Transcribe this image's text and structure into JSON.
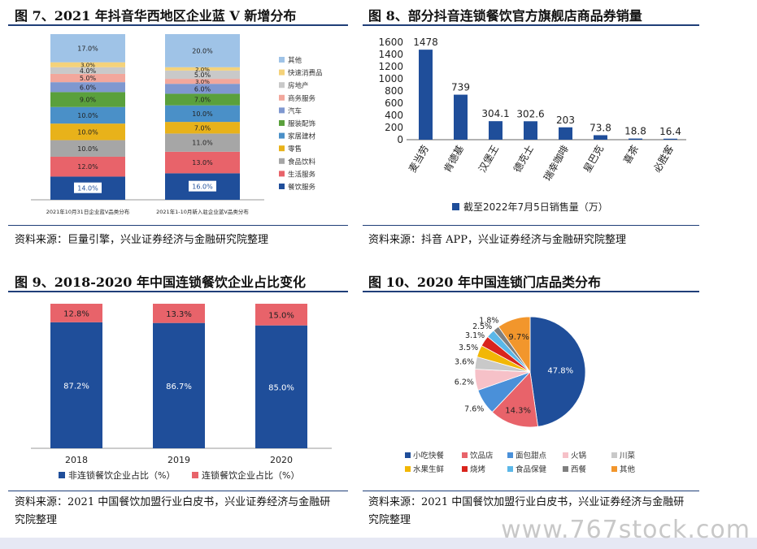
{
  "watermark": "www.767stock.com",
  "fig7": {
    "title": "图 7、2021 年抖音华西地区企业蓝 V 新增分布",
    "source": "资料来源：巨量引擎，兴业证券经济与金融研究院整理",
    "chart_data": {
      "type": "bar",
      "stacked": true,
      "categories": [
        "2021年10月31日企业蓝V品类分布",
        "2021年1-10月新入驻企业蓝V品类分布"
      ],
      "series": [
        {
          "name": "餐饮服务",
          "color": "#1f4e9a",
          "values": [
            14.0,
            16.0
          ]
        },
        {
          "name": "生活服务",
          "color": "#e8636a",
          "values": [
            12.0,
            13.0
          ]
        },
        {
          "name": "食品饮料",
          "color": "#a6a6a6",
          "values": [
            10.0,
            11.0
          ]
        },
        {
          "name": "零售",
          "color": "#e8b21a",
          "values": [
            10.0,
            7.0
          ]
        },
        {
          "name": "家居建材",
          "color": "#4a90c8",
          "values": [
            10.0,
            10.0
          ]
        },
        {
          "name": "服装配饰",
          "color": "#5aa03c",
          "values": [
            9.0,
            7.0
          ]
        },
        {
          "name": "汽车",
          "color": "#7f98d0",
          "values": [
            6.0,
            6.0
          ]
        },
        {
          "name": "商务服务",
          "color": "#f2a79c",
          "values": [
            5.0,
            3.0
          ]
        },
        {
          "name": "房地产",
          "color": "#c9c9c9",
          "values": [
            4.0,
            5.0
          ]
        },
        {
          "name": "快速消费品",
          "color": "#f4d27a",
          "values": [
            3.0,
            2.0
          ]
        },
        {
          "name": "其他",
          "color": "#9fc3e7",
          "values": [
            17.0,
            20.0
          ]
        }
      ]
    }
  },
  "fig8": {
    "title": "图 8、部分抖音连锁餐饮官方旗舰店商品券销量",
    "source": "资料来源：抖音 APP，兴业证券经济与金融研究院整理",
    "chart_data": {
      "type": "bar",
      "categories": [
        "麦当劳",
        "肯德基",
        "汉堡王",
        "德克士",
        "瑞幸咖啡",
        "星巴克",
        "喜茶",
        "必胜客"
      ],
      "series": [
        {
          "name": "截至2022年7月5日销售量（万）",
          "color": "#1f4e9a",
          "values": [
            1478,
            739,
            304.1,
            302.6,
            203,
            73.8,
            18.8,
            16.4
          ]
        }
      ],
      "value_labels": [
        "1478",
        "739",
        "304.1",
        "302.6",
        "203",
        "73.8",
        "18.8",
        "16.4"
      ],
      "ylim": [
        0,
        1600
      ],
      "yticks": [
        0,
        200,
        400,
        600,
        800,
        1000,
        1200,
        1400,
        1600
      ],
      "legend": "bottom"
    }
  },
  "fig9": {
    "title": "图 9、2018-2020 年中国连锁餐饮企业占比变化",
    "source": "资料来源：2021 中国餐饮加盟行业白皮书，兴业证券经济与金融研究院整理",
    "chart_data": {
      "type": "bar",
      "stacked": true,
      "categories": [
        "2018",
        "2019",
        "2020"
      ],
      "series": [
        {
          "name": "非连锁餐饮企业占比（%）",
          "color": "#1f4e9a",
          "values": [
            87.2,
            86.7,
            85.0
          ],
          "labels": [
            "87.2%",
            "86.7%",
            "85.0%"
          ]
        },
        {
          "name": "连锁餐饮企业占比（%）",
          "color": "#e8636a",
          "values": [
            12.8,
            13.3,
            15.0
          ],
          "labels": [
            "12.8%",
            "13.3%",
            "15.0%"
          ]
        }
      ],
      "legend": "bottom"
    }
  },
  "fig10": {
    "title": "图 10、2020 年中国连锁门店品类分布",
    "source": "资料来源：2021 中国餐饮加盟行业白皮书，兴业证券经济与金融研究院整理",
    "chart_data": {
      "type": "pie",
      "slices": [
        {
          "name": "小吃快餐",
          "value": 47.8,
          "label": "47.8%",
          "color": "#1f4e9a"
        },
        {
          "name": "饮品店",
          "value": 14.3,
          "label": "14.3%",
          "color": "#e8636a"
        },
        {
          "name": "面包甜点",
          "value": 7.6,
          "label": "7.6%",
          "color": "#4a90d9"
        },
        {
          "name": "火锅",
          "value": 6.2,
          "label": "6.2%",
          "color": "#f6c1c8"
        },
        {
          "name": "川菜",
          "value": 3.6,
          "label": "3.6%",
          "color": "#c9c9c9"
        },
        {
          "name": "水果生鲜",
          "value": 3.5,
          "label": "3.5%",
          "color": "#f2b705"
        },
        {
          "name": "烧烤",
          "value": 3.1,
          "label": "3.1%",
          "color": "#d9241c"
        },
        {
          "name": "食品保健",
          "value": 2.5,
          "label": "2.5%",
          "color": "#5bb7e8"
        },
        {
          "name": "西餐",
          "value": 1.8,
          "label": "1.8%",
          "color": "#7f7f7f"
        },
        {
          "name": "其他",
          "value": 9.7,
          "label": "9.7%",
          "color": "#f2962c"
        }
      ],
      "legend": "bottom"
    }
  }
}
